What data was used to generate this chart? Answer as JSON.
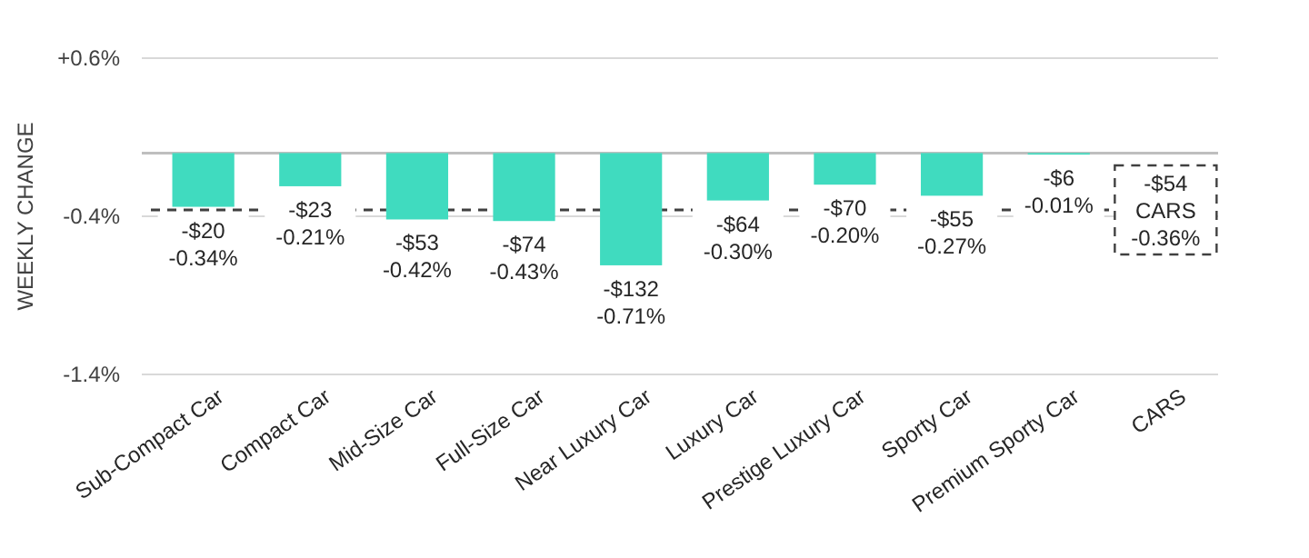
{
  "chart_data": {
    "type": "bar",
    "ylabel": "WEEKLY CHANGE",
    "categories": [
      "Sub-Compact Car",
      "Compact Car",
      "Mid-Size Car",
      "Full-Size Car",
      "Near Luxury Car",
      "Luxury Car",
      "Prestige Luxury Car",
      "Sporty Car",
      "Premium Sporty Car",
      "CARS"
    ],
    "values": [
      -0.34,
      -0.21,
      -0.42,
      -0.43,
      -0.71,
      -0.3,
      -0.2,
      -0.27,
      -0.01,
      null
    ],
    "value_labels": [
      "-$20\n-0.34%",
      "-$23\n-0.21%",
      "-$53\n-0.42%",
      "-$74\n-0.43%",
      "-$132\n-0.71%",
      "-$64\n-0.30%",
      "-$70\n-0.20%",
      "-$55\n-0.27%",
      "-$6\n-0.01%",
      null
    ],
    "color": "#40dbbf",
    "ylim": [
      -1.4,
      0.6
    ],
    "yticks": [
      {
        "value": 0.6,
        "label": "+0.6%"
      },
      {
        "value": -0.4,
        "label": "-0.4%"
      },
      {
        "value": -1.4,
        "label": "-1.4%"
      }
    ],
    "grid": "y",
    "ref_lines": [
      {
        "axis": "y",
        "value": -0.36,
        "label": "-$54\nCARS\n-0.36%",
        "line_style": "dashed",
        "color": "#404040"
      }
    ]
  }
}
